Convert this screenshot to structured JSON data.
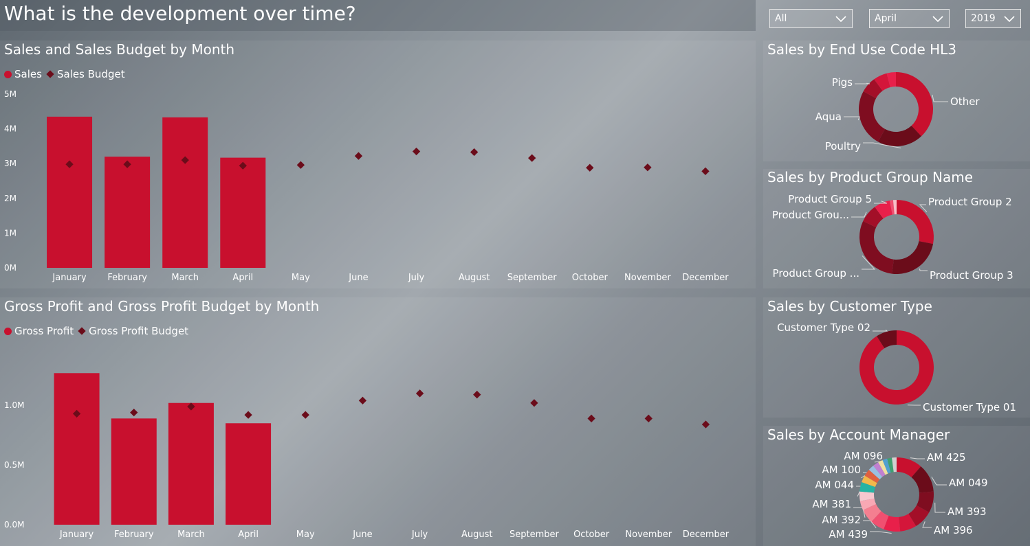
{
  "header": {
    "title": "What is the development over time?"
  },
  "slicers": [
    {
      "value": "All"
    },
    {
      "value": "April"
    },
    {
      "value": "2019"
    }
  ],
  "colors": {
    "sales": "#c8102e",
    "budget": "#6b0c1a"
  },
  "icons": {
    "slicer_arrow": "chevron-down-icon"
  },
  "sales_chart": {
    "title": "Sales and Sales Budget by Month",
    "legend": [
      "Sales",
      "Sales Budget"
    ]
  },
  "gp_chart": {
    "title": "Gross Profit and Gross Profit Budget by Month",
    "legend": [
      "Gross Profit",
      "Gross Profit Budget"
    ]
  },
  "donut_enduse": {
    "title": "Sales by End Use Code HL3"
  },
  "donut_product": {
    "title": "Sales by Product Group Name"
  },
  "donut_customer": {
    "title": "Sales by Customer Type"
  },
  "donut_am": {
    "title": "Sales by Account Manager"
  },
  "chart_data": [
    {
      "type": "bar",
      "title": "Sales and Sales Budget by Month",
      "categories": [
        "January",
        "February",
        "March",
        "April",
        "May",
        "June",
        "July",
        "August",
        "September",
        "October",
        "November",
        "December"
      ],
      "yticks": [
        "0M",
        "1M",
        "2M",
        "3M",
        "4M",
        "5M"
      ],
      "ylim": [
        0,
        5
      ],
      "legend_position": "top-left",
      "series": [
        {
          "name": "Sales",
          "kind": "bar",
          "values": [
            4.35,
            3.2,
            4.33,
            3.17,
            null,
            null,
            null,
            null,
            null,
            null,
            null,
            null
          ]
        },
        {
          "name": "Sales Budget",
          "kind": "marker",
          "values": [
            2.98,
            2.98,
            3.1,
            2.94,
            2.96,
            3.22,
            3.35,
            3.33,
            3.16,
            2.88,
            2.89,
            2.78
          ]
        }
      ]
    },
    {
      "type": "bar",
      "title": "Gross Profit and Gross Profit Budget by Month",
      "categories": [
        "January",
        "February",
        "March",
        "April",
        "May",
        "June",
        "July",
        "August",
        "September",
        "October",
        "November",
        "December"
      ],
      "yticks": [
        "0.0M",
        "0.5M",
        "1.0M"
      ],
      "ylim": [
        0,
        1.45
      ],
      "legend_position": "top-left",
      "series": [
        {
          "name": "Gross Profit",
          "kind": "bar",
          "values": [
            1.27,
            0.89,
            1.02,
            0.85,
            null,
            null,
            null,
            null,
            null,
            null,
            null,
            null
          ]
        },
        {
          "name": "Gross Profit Budget",
          "kind": "marker",
          "values": [
            0.93,
            0.94,
            0.99,
            0.92,
            0.92,
            1.04,
            1.1,
            1.09,
            1.02,
            0.89,
            0.89,
            0.84
          ]
        }
      ]
    },
    {
      "type": "pie",
      "title": "Sales by End Use Code HL3",
      "slices": [
        {
          "label": "Other",
          "value": 38,
          "color": "#c8102e"
        },
        {
          "label": "Poultry",
          "value": 20,
          "color": "#6b0c1a"
        },
        {
          "label": "Aqua",
          "value": 25,
          "color": "#7f0d20"
        },
        {
          "label": "Pigs",
          "value": 7,
          "color": "#a30f28"
        },
        {
          "label": "",
          "value": 6,
          "color": "#d4163a"
        },
        {
          "label": "",
          "value": 4,
          "color": "#e8204a"
        }
      ]
    },
    {
      "type": "pie",
      "title": "Sales by Product Group Name",
      "slices": [
        {
          "label": "Product Group 2",
          "value": 28,
          "color": "#c8102e"
        },
        {
          "label": "Product Group 3",
          "value": 24,
          "color": "#6b0c1a"
        },
        {
          "label": "Product Group ...",
          "value": 30,
          "color": "#7f0d20"
        },
        {
          "label": "Product Grou...",
          "value": 8,
          "color": "#a30f28"
        },
        {
          "label": "Product Group 5",
          "value": 7,
          "color": "#e8204a"
        },
        {
          "label": "",
          "value": 1.5,
          "color": "#f05070"
        },
        {
          "label": "",
          "value": 1.5,
          "color": "#f8c0c8"
        }
      ]
    },
    {
      "type": "pie",
      "title": "Sales by Customer Type",
      "slices": [
        {
          "label": "Customer Type 01",
          "value": 91,
          "color": "#c8102e"
        },
        {
          "label": "Customer Type 02",
          "value": 9,
          "color": "#6b0c1a"
        }
      ]
    },
    {
      "type": "pie",
      "title": "Sales by Account Manager",
      "slices": [
        {
          "label": "AM 425",
          "value": 11,
          "color": "#c8102e"
        },
        {
          "label": "AM 049",
          "value": 12,
          "color": "#6b0c1a"
        },
        {
          "label": "AM 393",
          "value": 9,
          "color": "#7f0d20"
        },
        {
          "label": "AM 396",
          "value": 8,
          "color": "#a30f28"
        },
        {
          "label": "",
          "value": 7,
          "color": "#d4163a"
        },
        {
          "label": "AM 439",
          "value": 7,
          "color": "#e8204a"
        },
        {
          "label": "AM 392",
          "value": 6,
          "color": "#f05070"
        },
        {
          "label": "AM 381",
          "value": 6,
          "color": "#f47f90"
        },
        {
          "label": "",
          "value": 4,
          "color": "#f8a8b4"
        },
        {
          "label": "AM 044",
          "value": 4,
          "color": "#f6c8cf"
        },
        {
          "label": "",
          "value": 4,
          "color": "#26b3a3"
        },
        {
          "label": "AM 100",
          "value": 3,
          "color": "#f2b84b"
        },
        {
          "label": "",
          "value": 3,
          "color": "#e06040"
        },
        {
          "label": "",
          "value": 2.5,
          "color": "#9ac0e0"
        },
        {
          "label": "AM 096",
          "value": 2.5,
          "color": "#c080d0"
        },
        {
          "label": "",
          "value": 2,
          "color": "#f0e0a0"
        },
        {
          "label": "",
          "value": 2,
          "color": "#50a0d0"
        },
        {
          "label": "",
          "value": 2,
          "color": "#40a070"
        },
        {
          "label": "",
          "value": 2,
          "color": "#d0d0d0"
        }
      ]
    }
  ]
}
